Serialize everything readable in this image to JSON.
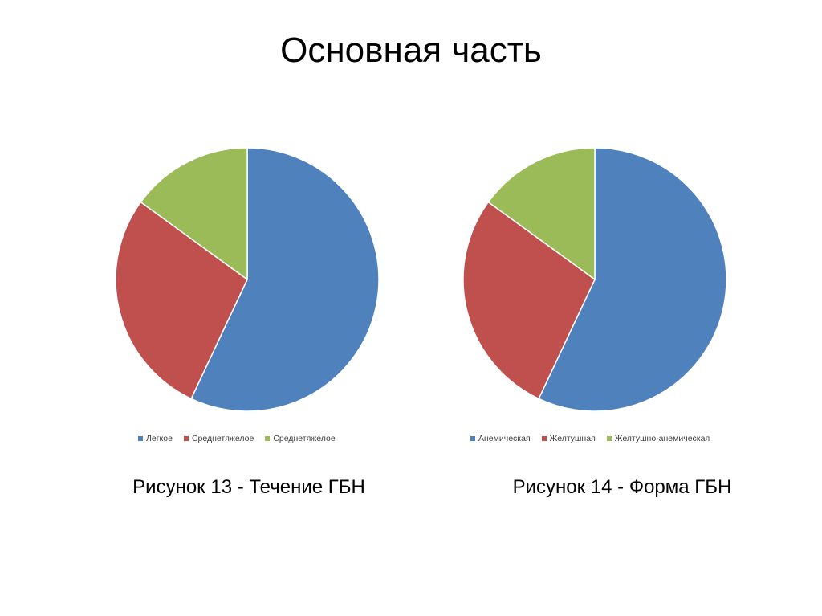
{
  "slide": {
    "title": "Основная часть"
  },
  "colors": {
    "blue": "#4F81BD",
    "red": "#C0504D",
    "green": "#9BBB59"
  },
  "captions": {
    "left": "Рисунок  13 - Течение ГБН",
    "right": "Рисунок 14 - Форма ГБН"
  },
  "chart_data": [
    {
      "type": "pie",
      "title": "",
      "categories": [
        "Легкое",
        "Среднетяжелое",
        "Среднетяжелое"
      ],
      "values": [
        57,
        28,
        15
      ],
      "colors": [
        "#4F81BD",
        "#C0504D",
        "#9BBB59"
      ],
      "legend": "bottom"
    },
    {
      "type": "pie",
      "title": "",
      "categories": [
        "Анемическая",
        "Желтушная",
        "Желтушно-анемическая"
      ],
      "values": [
        57,
        28,
        15
      ],
      "colors": [
        "#4F81BD",
        "#C0504D",
        "#9BBB59"
      ],
      "legend": "bottom"
    }
  ]
}
